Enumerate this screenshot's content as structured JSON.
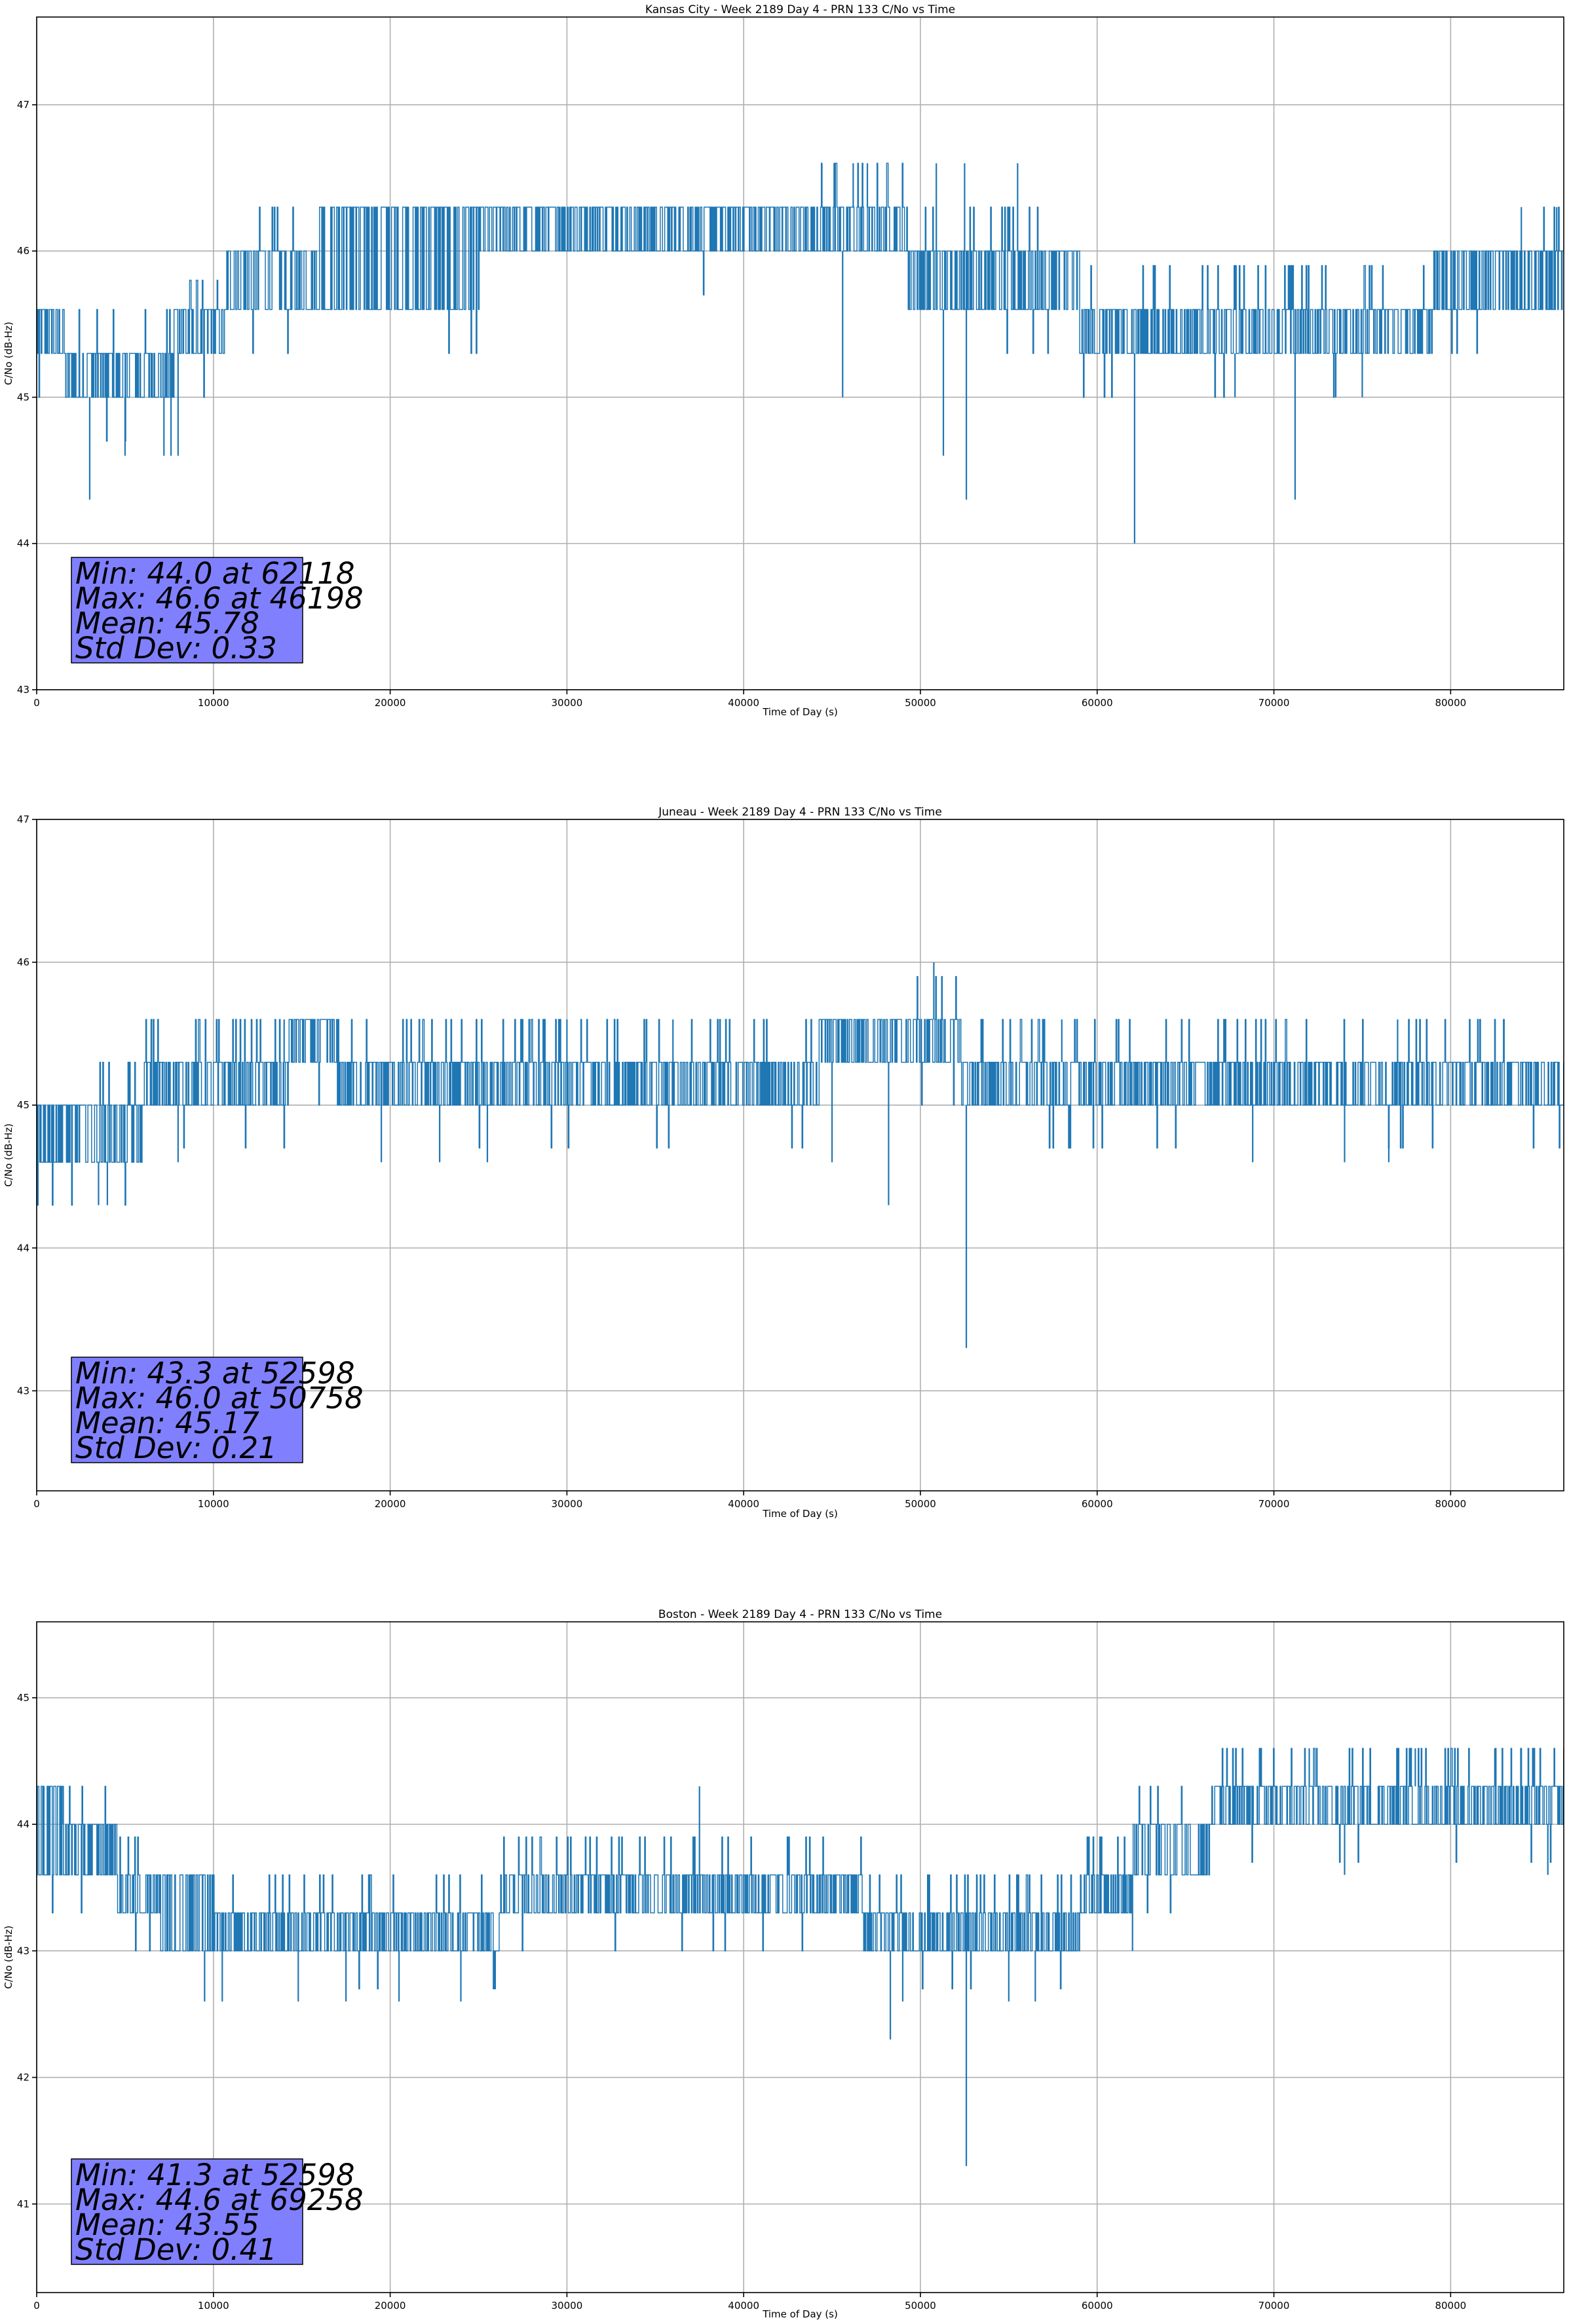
{
  "figure": {
    "series_color": "#1f77b4",
    "stats_box_color": "#8080ff"
  },
  "chart_data": [
    {
      "type": "line",
      "title": "Kansas City - Week 2189 Day 4 - PRN 133 C/No vs Time",
      "xlabel": "Time of Day (s)",
      "ylabel": "C/No (dB-Hz)",
      "xlim": [
        0,
        86400
      ],
      "ylim": [
        43,
        47.6
      ],
      "xticks": [
        0,
        10000,
        20000,
        30000,
        40000,
        50000,
        60000,
        70000,
        80000
      ],
      "yticks": [
        43,
        44,
        45,
        46,
        47
      ],
      "grid": true,
      "quantization": 0.3,
      "stats": [
        "Min: 44.0 at 62118",
        "Max: 46.6 at 46198",
        "Mean: 45.78",
        "Std Dev: 0.33"
      ],
      "envelope": [
        {
          "x": 0,
          "low": 45.3,
          "high": 45.6,
          "upper_spike": 46.0
        },
        {
          "x": 3000,
          "low": 45.0,
          "high": 45.3,
          "upper_spike": 45.6
        },
        {
          "x": 6000,
          "low": 45.0,
          "high": 45.3,
          "upper_spike": 45.6
        },
        {
          "x": 9500,
          "low": 45.3,
          "high": 45.6,
          "upper_spike": 45.8
        },
        {
          "x": 12000,
          "low": 45.6,
          "high": 46.0,
          "upper_spike": 46.3
        },
        {
          "x": 20000,
          "low": 45.6,
          "high": 46.3,
          "upper_spike": 46.3
        },
        {
          "x": 30000,
          "low": 46.0,
          "high": 46.3,
          "upper_spike": 46.3
        },
        {
          "x": 40000,
          "low": 46.0,
          "high": 46.3,
          "upper_spike": 46.3
        },
        {
          "x": 46000,
          "low": 46.0,
          "high": 46.3,
          "upper_spike": 46.6
        },
        {
          "x": 52500,
          "low": 45.6,
          "high": 46.0,
          "upper_spike": 46.3
        },
        {
          "x": 58000,
          "low": 45.6,
          "high": 46.0,
          "upper_spike": 46.3
        },
        {
          "x": 60000,
          "low": 45.3,
          "high": 45.6,
          "upper_spike": 46.0
        },
        {
          "x": 70000,
          "low": 45.3,
          "high": 45.6,
          "upper_spike": 46.0
        },
        {
          "x": 78000,
          "low": 45.3,
          "high": 45.6,
          "upper_spike": 46.0
        },
        {
          "x": 80000,
          "low": 45.6,
          "high": 46.0,
          "upper_spike": 46.0
        },
        {
          "x": 86400,
          "low": 45.6,
          "high": 46.0,
          "upper_spike": 46.3
        }
      ],
      "dips": [
        {
          "x": 3000,
          "y": 44.3
        },
        {
          "x": 5000,
          "y": 44.6
        },
        {
          "x": 7200,
          "y": 44.6
        },
        {
          "x": 7600,
          "y": 44.6
        },
        {
          "x": 8000,
          "y": 44.6
        },
        {
          "x": 45600,
          "y": 45.0
        },
        {
          "x": 51300,
          "y": 44.6
        },
        {
          "x": 52600,
          "y": 44.3
        },
        {
          "x": 62118,
          "y": 44.0
        },
        {
          "x": 67800,
          "y": 45.0
        },
        {
          "x": 71200,
          "y": 44.3
        },
        {
          "x": 73500,
          "y": 45.0
        },
        {
          "x": 75000,
          "y": 45.0
        }
      ],
      "peaks": [
        {
          "x": 46198,
          "y": 46.6
        },
        {
          "x": 47000,
          "y": 46.6
        },
        {
          "x": 50900,
          "y": 46.6
        },
        {
          "x": 52500,
          "y": 46.6
        },
        {
          "x": 55500,
          "y": 46.6
        },
        {
          "x": 84000,
          "y": 46.3
        },
        {
          "x": 86000,
          "y": 46.3
        }
      ]
    },
    {
      "type": "line",
      "title": "Juneau - Week 2189 Day 4 - PRN 133 C/No vs Time",
      "xlabel": "Time of Day (s)",
      "ylabel": "C/No (dB-Hz)",
      "xlim": [
        0,
        86400
      ],
      "ylim": [
        42.3,
        47
      ],
      "xticks": [
        0,
        10000,
        20000,
        30000,
        40000,
        50000,
        60000,
        70000,
        80000
      ],
      "yticks": [
        43,
        44,
        45,
        46,
        47
      ],
      "grid": true,
      "quantization": 0.3,
      "stats": [
        "Min: 43.3 at 52598",
        "Max: 46.0 at 50758",
        "Mean: 45.17",
        "Std Dev: 0.21"
      ],
      "envelope": [
        {
          "x": 0,
          "low": 44.6,
          "high": 45.0,
          "upper_spike": 45.3
        },
        {
          "x": 2000,
          "low": 44.6,
          "high": 45.0,
          "upper_spike": 45.0
        },
        {
          "x": 5000,
          "low": 44.6,
          "high": 45.0,
          "upper_spike": 45.3
        },
        {
          "x": 7000,
          "low": 45.0,
          "high": 45.3,
          "upper_spike": 45.6
        },
        {
          "x": 12000,
          "low": 45.0,
          "high": 45.3,
          "upper_spike": 45.6
        },
        {
          "x": 16500,
          "low": 45.3,
          "high": 45.6,
          "upper_spike": 45.6
        },
        {
          "x": 17200,
          "low": 45.0,
          "high": 45.3,
          "upper_spike": 45.6
        },
        {
          "x": 30000,
          "low": 45.0,
          "high": 45.3,
          "upper_spike": 45.6
        },
        {
          "x": 40000,
          "low": 45.0,
          "high": 45.3,
          "upper_spike": 45.6
        },
        {
          "x": 48500,
          "low": 45.3,
          "high": 45.6,
          "upper_spike": 45.6
        },
        {
          "x": 50500,
          "low": 45.3,
          "high": 45.6,
          "upper_spike": 46.0
        },
        {
          "x": 54000,
          "low": 45.0,
          "high": 45.3,
          "upper_spike": 45.6
        },
        {
          "x": 60000,
          "low": 45.0,
          "high": 45.3,
          "upper_spike": 45.6
        },
        {
          "x": 70000,
          "low": 45.0,
          "high": 45.3,
          "upper_spike": 45.6
        },
        {
          "x": 80000,
          "low": 45.0,
          "high": 45.3,
          "upper_spike": 45.6
        },
        {
          "x": 86400,
          "low": 45.0,
          "high": 45.3,
          "upper_spike": 45.3
        }
      ],
      "dips": [
        {
          "x": 2000,
          "y": 44.3
        },
        {
          "x": 3500,
          "y": 44.3
        },
        {
          "x": 4000,
          "y": 44.3
        },
        {
          "x": 8000,
          "y": 44.6
        },
        {
          "x": 19500,
          "y": 44.6
        },
        {
          "x": 22800,
          "y": 44.6
        },
        {
          "x": 25500,
          "y": 44.6
        },
        {
          "x": 45000,
          "y": 44.6
        },
        {
          "x": 48200,
          "y": 44.3
        },
        {
          "x": 52598,
          "y": 43.3
        },
        {
          "x": 68800,
          "y": 44.6
        },
        {
          "x": 74000,
          "y": 44.6
        },
        {
          "x": 76500,
          "y": 44.6
        }
      ],
      "peaks": [
        {
          "x": 50758,
          "y": 46.0
        },
        {
          "x": 9000,
          "y": 45.6
        },
        {
          "x": 14000,
          "y": 45.6
        },
        {
          "x": 30000,
          "y": 45.6
        },
        {
          "x": 36000,
          "y": 45.6
        },
        {
          "x": 58000,
          "y": 45.6
        },
        {
          "x": 77000,
          "y": 45.6
        },
        {
          "x": 83000,
          "y": 45.6
        }
      ]
    },
    {
      "type": "line",
      "title": "Boston - Week 2189 Day 4 - PRN 133 C/No vs Time",
      "xlabel": "Time of Day (s)",
      "ylabel": "C/No (dB-Hz)",
      "xlim": [
        0,
        86400
      ],
      "ylim": [
        40.3,
        45.6
      ],
      "xticks": [
        0,
        10000,
        20000,
        30000,
        40000,
        50000,
        60000,
        70000,
        80000
      ],
      "yticks": [
        41,
        42,
        43,
        44,
        45
      ],
      "grid": true,
      "quantization": 0.3,
      "stats": [
        "Min: 41.3 at 52598",
        "Max: 44.6 at 69258",
        "Mean: 43.55",
        "Std Dev: 0.41"
      ],
      "envelope": [
        {
          "x": 0,
          "low": 43.6,
          "high": 44.3,
          "upper_spike": 44.3
        },
        {
          "x": 3000,
          "low": 43.6,
          "high": 44.0,
          "upper_spike": 44.3
        },
        {
          "x": 6000,
          "low": 43.3,
          "high": 43.6,
          "upper_spike": 44.0
        },
        {
          "x": 8000,
          "low": 43.0,
          "high": 43.6,
          "upper_spike": 43.6
        },
        {
          "x": 12000,
          "low": 43.0,
          "high": 43.3,
          "upper_spike": 43.6
        },
        {
          "x": 20000,
          "low": 43.0,
          "high": 43.3,
          "upper_spike": 43.6
        },
        {
          "x": 25500,
          "low": 43.0,
          "high": 43.3,
          "upper_spike": 43.6
        },
        {
          "x": 27000,
          "low": 43.3,
          "high": 43.6,
          "upper_spike": 44.0
        },
        {
          "x": 37000,
          "low": 43.3,
          "high": 43.6,
          "upper_spike": 44.3
        },
        {
          "x": 46000,
          "low": 43.3,
          "high": 43.6,
          "upper_spike": 44.0
        },
        {
          "x": 47500,
          "low": 43.0,
          "high": 43.3,
          "upper_spike": 43.6
        },
        {
          "x": 58000,
          "low": 43.0,
          "high": 43.3,
          "upper_spike": 43.6
        },
        {
          "x": 60000,
          "low": 43.3,
          "high": 43.6,
          "upper_spike": 44.0
        },
        {
          "x": 64000,
          "low": 43.6,
          "high": 44.0,
          "upper_spike": 44.3
        },
        {
          "x": 68800,
          "low": 44.0,
          "high": 44.3,
          "upper_spike": 44.6
        },
        {
          "x": 80000,
          "low": 44.0,
          "high": 44.3,
          "upper_spike": 44.6
        },
        {
          "x": 86400,
          "low": 44.0,
          "high": 44.3,
          "upper_spike": 44.6
        }
      ],
      "dips": [
        {
          "x": 9500,
          "y": 42.6
        },
        {
          "x": 10500,
          "y": 42.6
        },
        {
          "x": 14800,
          "y": 42.6
        },
        {
          "x": 17500,
          "y": 42.6
        },
        {
          "x": 20500,
          "y": 42.6
        },
        {
          "x": 24000,
          "y": 42.6
        },
        {
          "x": 48300,
          "y": 42.3
        },
        {
          "x": 49000,
          "y": 42.6
        },
        {
          "x": 52598,
          "y": 41.3
        },
        {
          "x": 55000,
          "y": 42.6
        },
        {
          "x": 56500,
          "y": 42.6
        },
        {
          "x": 62000,
          "y": 43.0
        },
        {
          "x": 74000,
          "y": 43.6
        },
        {
          "x": 85500,
          "y": 43.6
        }
      ],
      "peaks": [
        {
          "x": 69258,
          "y": 44.6
        },
        {
          "x": 71000,
          "y": 44.6
        },
        {
          "x": 72000,
          "y": 44.6
        },
        {
          "x": 78000,
          "y": 44.6
        },
        {
          "x": 82500,
          "y": 44.6
        },
        {
          "x": 84000,
          "y": 44.6
        },
        {
          "x": 37500,
          "y": 44.3
        },
        {
          "x": 1500,
          "y": 44.3
        }
      ]
    }
  ]
}
